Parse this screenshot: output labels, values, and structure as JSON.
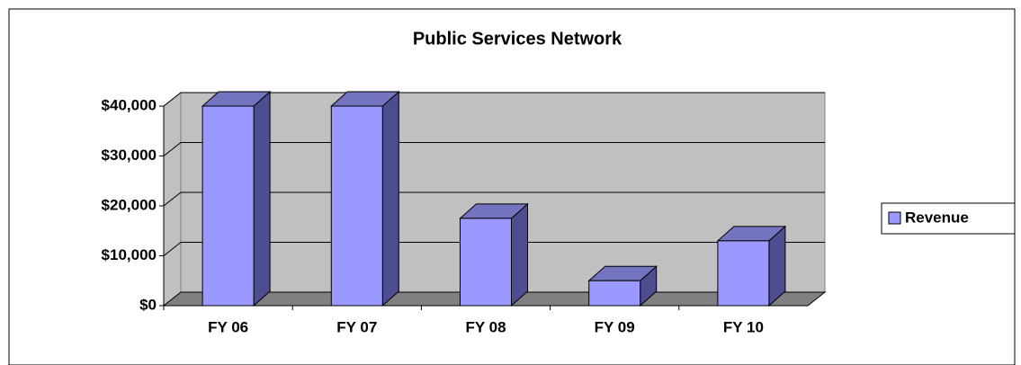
{
  "chart_data": {
    "type": "bar",
    "title": "Public Services Network",
    "categories": [
      "FY 06",
      "FY 07",
      "FY 08",
      "FY 09",
      "FY 10"
    ],
    "series": [
      {
        "name": "Revenue",
        "color": "#9999ff",
        "values": [
          40000,
          40000,
          17500,
          5000,
          13000
        ]
      }
    ],
    "ylim": [
      0,
      40000
    ],
    "yticks": [
      {
        "value": 0,
        "label": "$0"
      },
      {
        "value": 10000,
        "label": "$10,000"
      },
      {
        "value": 20000,
        "label": "$20,000"
      },
      {
        "value": 30000,
        "label": "$30,000"
      },
      {
        "value": 40000,
        "label": "$40,000"
      }
    ],
    "grid": true,
    "legend": "right"
  }
}
